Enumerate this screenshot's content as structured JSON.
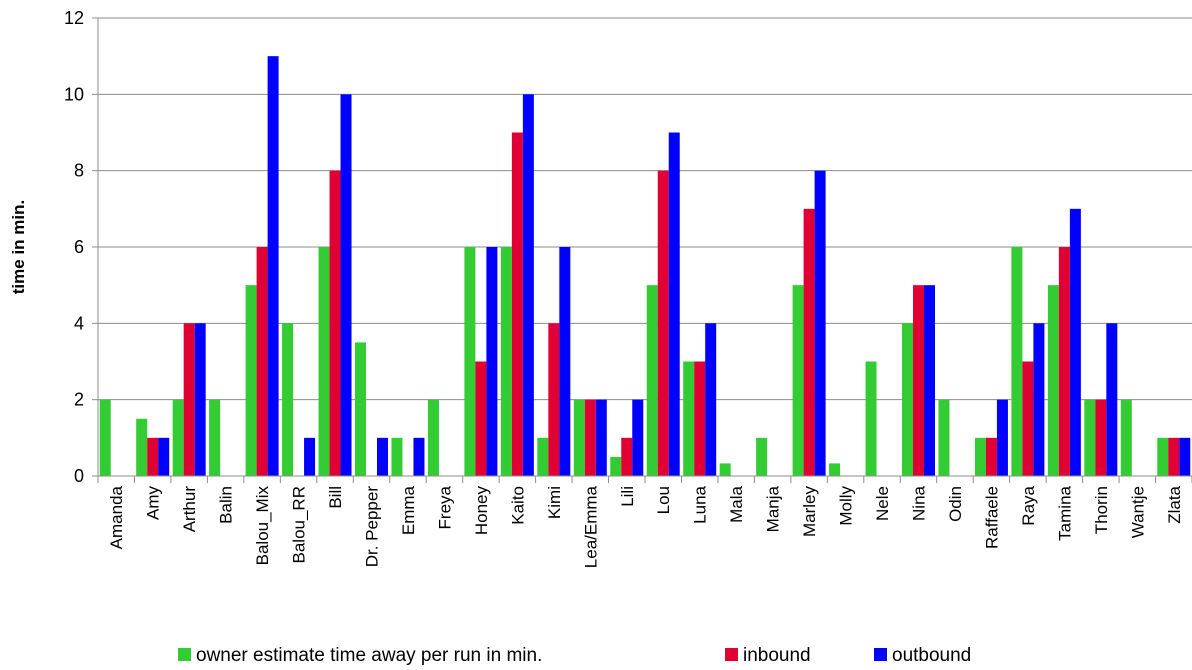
{
  "chart_data": {
    "type": "bar",
    "title": "",
    "xlabel": "",
    "ylabel": "time in min.",
    "ylim": [
      0,
      12
    ],
    "yticks": [
      0,
      2,
      4,
      6,
      8,
      10,
      12
    ],
    "grid": true,
    "legend_position": "bottom",
    "categories": [
      "Amanda",
      "Amy",
      "Arthur",
      "Balin",
      "Balou_Mix",
      "Balou_RR",
      "Bill",
      "Dr. Pepper",
      "Emma",
      "Freya",
      "Honey",
      "Kaito",
      "Kimi",
      "Lea/Emma",
      "Lili",
      "Lou",
      "Luna",
      "Mala",
      "Manja",
      "Marley",
      "Molly",
      "Nele",
      "Nina",
      "Odin",
      "Raffaele",
      "Raya",
      "Tamina",
      "Thorin",
      "Wantje",
      "Zlata"
    ],
    "series": [
      {
        "name": "owner estimate time away per run in min.",
        "color": "#33cc33",
        "values": [
          2,
          1.5,
          2,
          2,
          5,
          4,
          6,
          3.5,
          1,
          2,
          6,
          6,
          1,
          2,
          0.5,
          5,
          3,
          0.33,
          1,
          5,
          0.33,
          3,
          4,
          2,
          1,
          6,
          5,
          2,
          2,
          1
        ]
      },
      {
        "name": "inbound",
        "color": "#e00034",
        "values": [
          0,
          1,
          4,
          0,
          6,
          0,
          8,
          0,
          0,
          0,
          3,
          9,
          4,
          2,
          1,
          8,
          3,
          0,
          0,
          7,
          0,
          0,
          5,
          0,
          1,
          3,
          6,
          2,
          0,
          1
        ]
      },
      {
        "name": "outbound",
        "color": "#0000ff",
        "values": [
          0,
          1,
          4,
          0,
          11,
          1,
          10,
          1,
          1,
          0,
          6,
          10,
          6,
          2,
          2,
          9,
          4,
          0,
          0,
          8,
          0,
          0,
          5,
          0,
          2,
          4,
          7,
          4,
          0,
          1
        ]
      }
    ]
  }
}
